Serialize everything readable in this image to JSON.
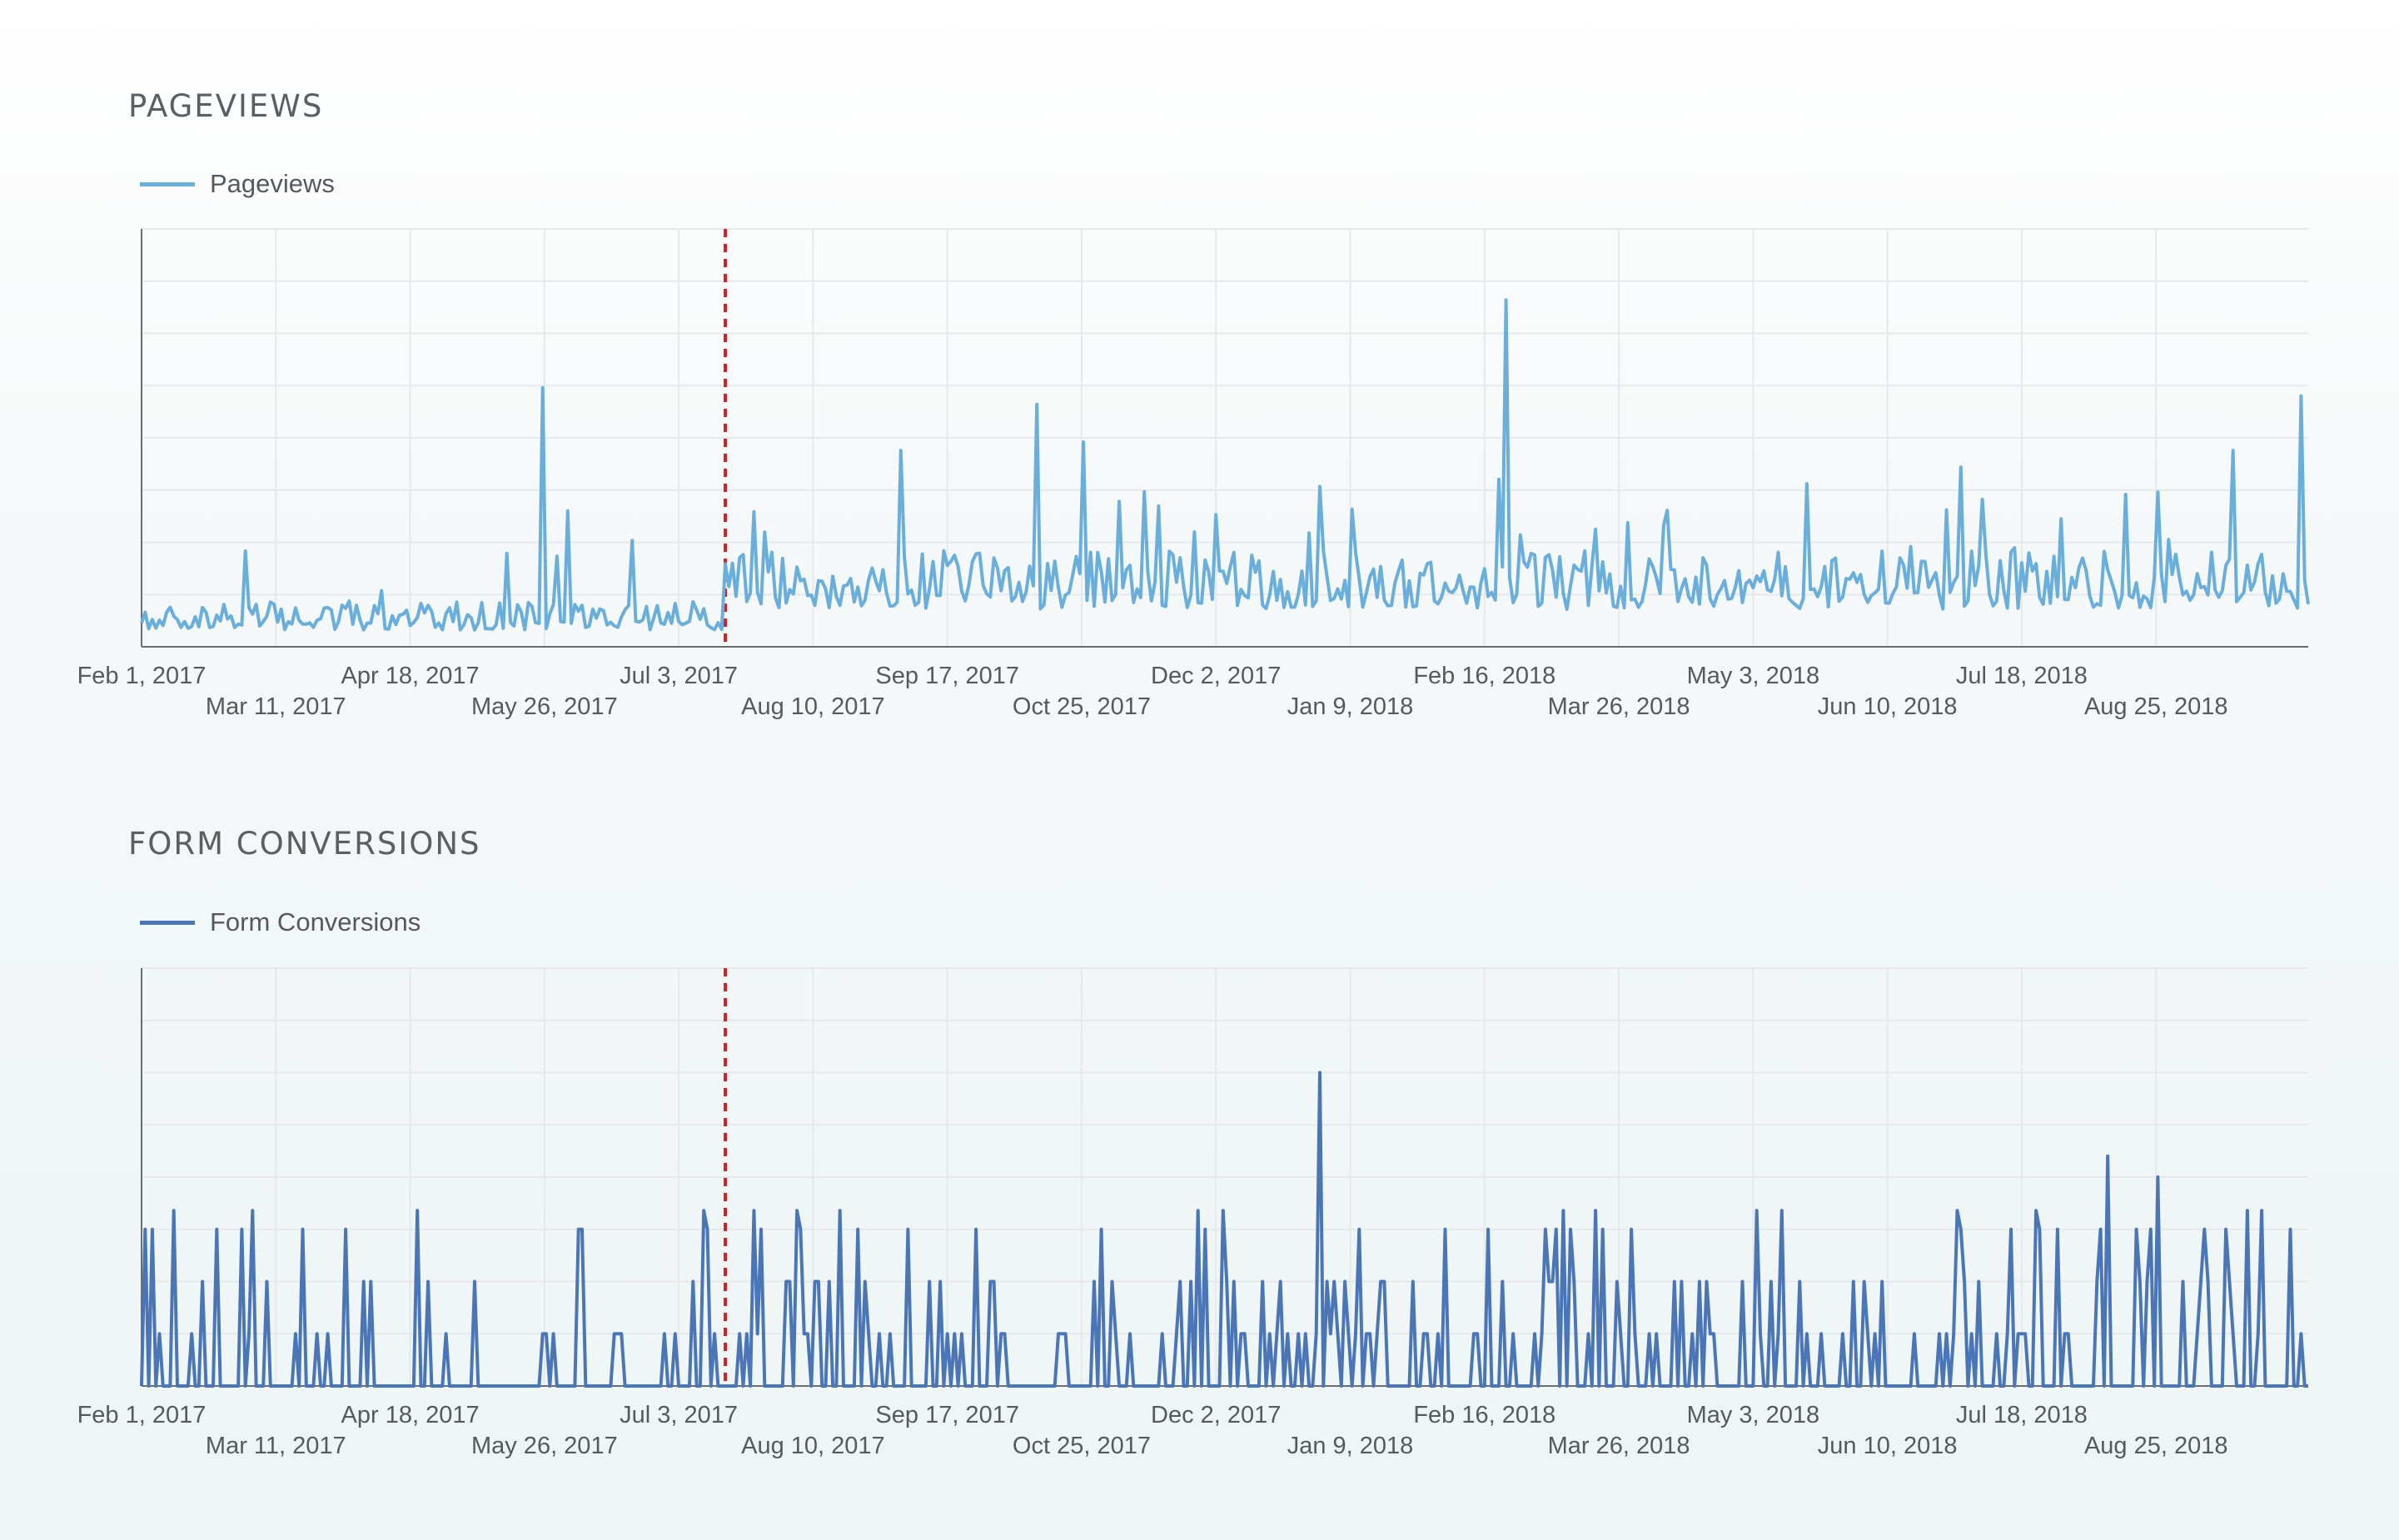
{
  "colors": {
    "pageviews_line": "#6aaedc",
    "conversions_line": "#4a76b8",
    "marker": "#d0202a",
    "grid": "#e6e9ec",
    "axis": "#6a6e73",
    "tick_text": "#555a60"
  },
  "chart_data": [
    {
      "type": "line",
      "title": "PAGEVIEWS",
      "legend": "top-left",
      "grid": true,
      "series": [
        {
          "name": "Pageviews"
        }
      ],
      "x_range": [
        "2017-02-01",
        "2018-09-29"
      ],
      "x_tick_labels": {
        "top_row": [
          "Feb 1, 2017",
          "Apr 18, 2017",
          "Jul 3, 2017",
          "Sep 17, 2017",
          "Dec 2, 2017",
          "Feb 16, 2018",
          "May 3, 2018",
          "Jul 18, 2018"
        ],
        "bottom_row": [
          "Mar 11, 2017",
          "May 26, 2017",
          "Aug 10, 2017",
          "Oct 25, 2017",
          "Jan 9, 2018",
          "Mar 26, 2018",
          "Jun 10, 2018",
          "Aug 25, 2018"
        ]
      },
      "marker_date": "2017-07-14",
      "peaks": [
        {
          "date": "2017-05-24",
          "value": 0.62
        },
        {
          "date": "2017-10-09",
          "value": 0.58
        },
        {
          "date": "2017-10-22",
          "value": 0.49
        },
        {
          "date": "2017-09-01",
          "value": 0.47
        },
        {
          "date": "2018-02-17",
          "value": 0.83
        },
        {
          "date": "2018-06-24",
          "value": 0.43
        },
        {
          "date": "2018-05-12",
          "value": 0.39
        },
        {
          "date": "2018-09-27",
          "value": 0.6
        },
        {
          "date": "2018-09-08",
          "value": 0.47
        }
      ]
    },
    {
      "type": "line",
      "title": "FORM CONVERSIONS",
      "legend": "top-left",
      "grid": true,
      "series": [
        {
          "name": "Form Conversions"
        }
      ],
      "x_range": [
        "2017-02-01",
        "2018-09-29"
      ],
      "x_tick_labels": {
        "top_row": [
          "Feb 1, 2017",
          "Apr 18, 2017",
          "Jul 3, 2017",
          "Sep 17, 2017",
          "Dec 2, 2017",
          "Feb 16, 2018",
          "May 3, 2018",
          "Jul 18, 2018"
        ],
        "bottom_row": [
          "Mar 11, 2017",
          "May 26, 2017",
          "Aug 10, 2017",
          "Oct 25, 2017",
          "Jan 9, 2018",
          "Mar 26, 2018",
          "Jun 10, 2018",
          "Aug 25, 2018"
        ]
      },
      "marker_date": "2017-07-14",
      "peaks": [
        {
          "date": "2017-12-27",
          "value": 0.75
        },
        {
          "date": "2018-08-04",
          "value": 0.55
        },
        {
          "date": "2018-08-18",
          "value": 0.5
        },
        {
          "date": "2018-09-16",
          "value": 0.42
        },
        {
          "date": "2018-03-05",
          "value": 0.42
        },
        {
          "date": "2018-04-28",
          "value": 0.42
        },
        {
          "date": "2018-05-05",
          "value": 0.42
        }
      ]
    }
  ]
}
